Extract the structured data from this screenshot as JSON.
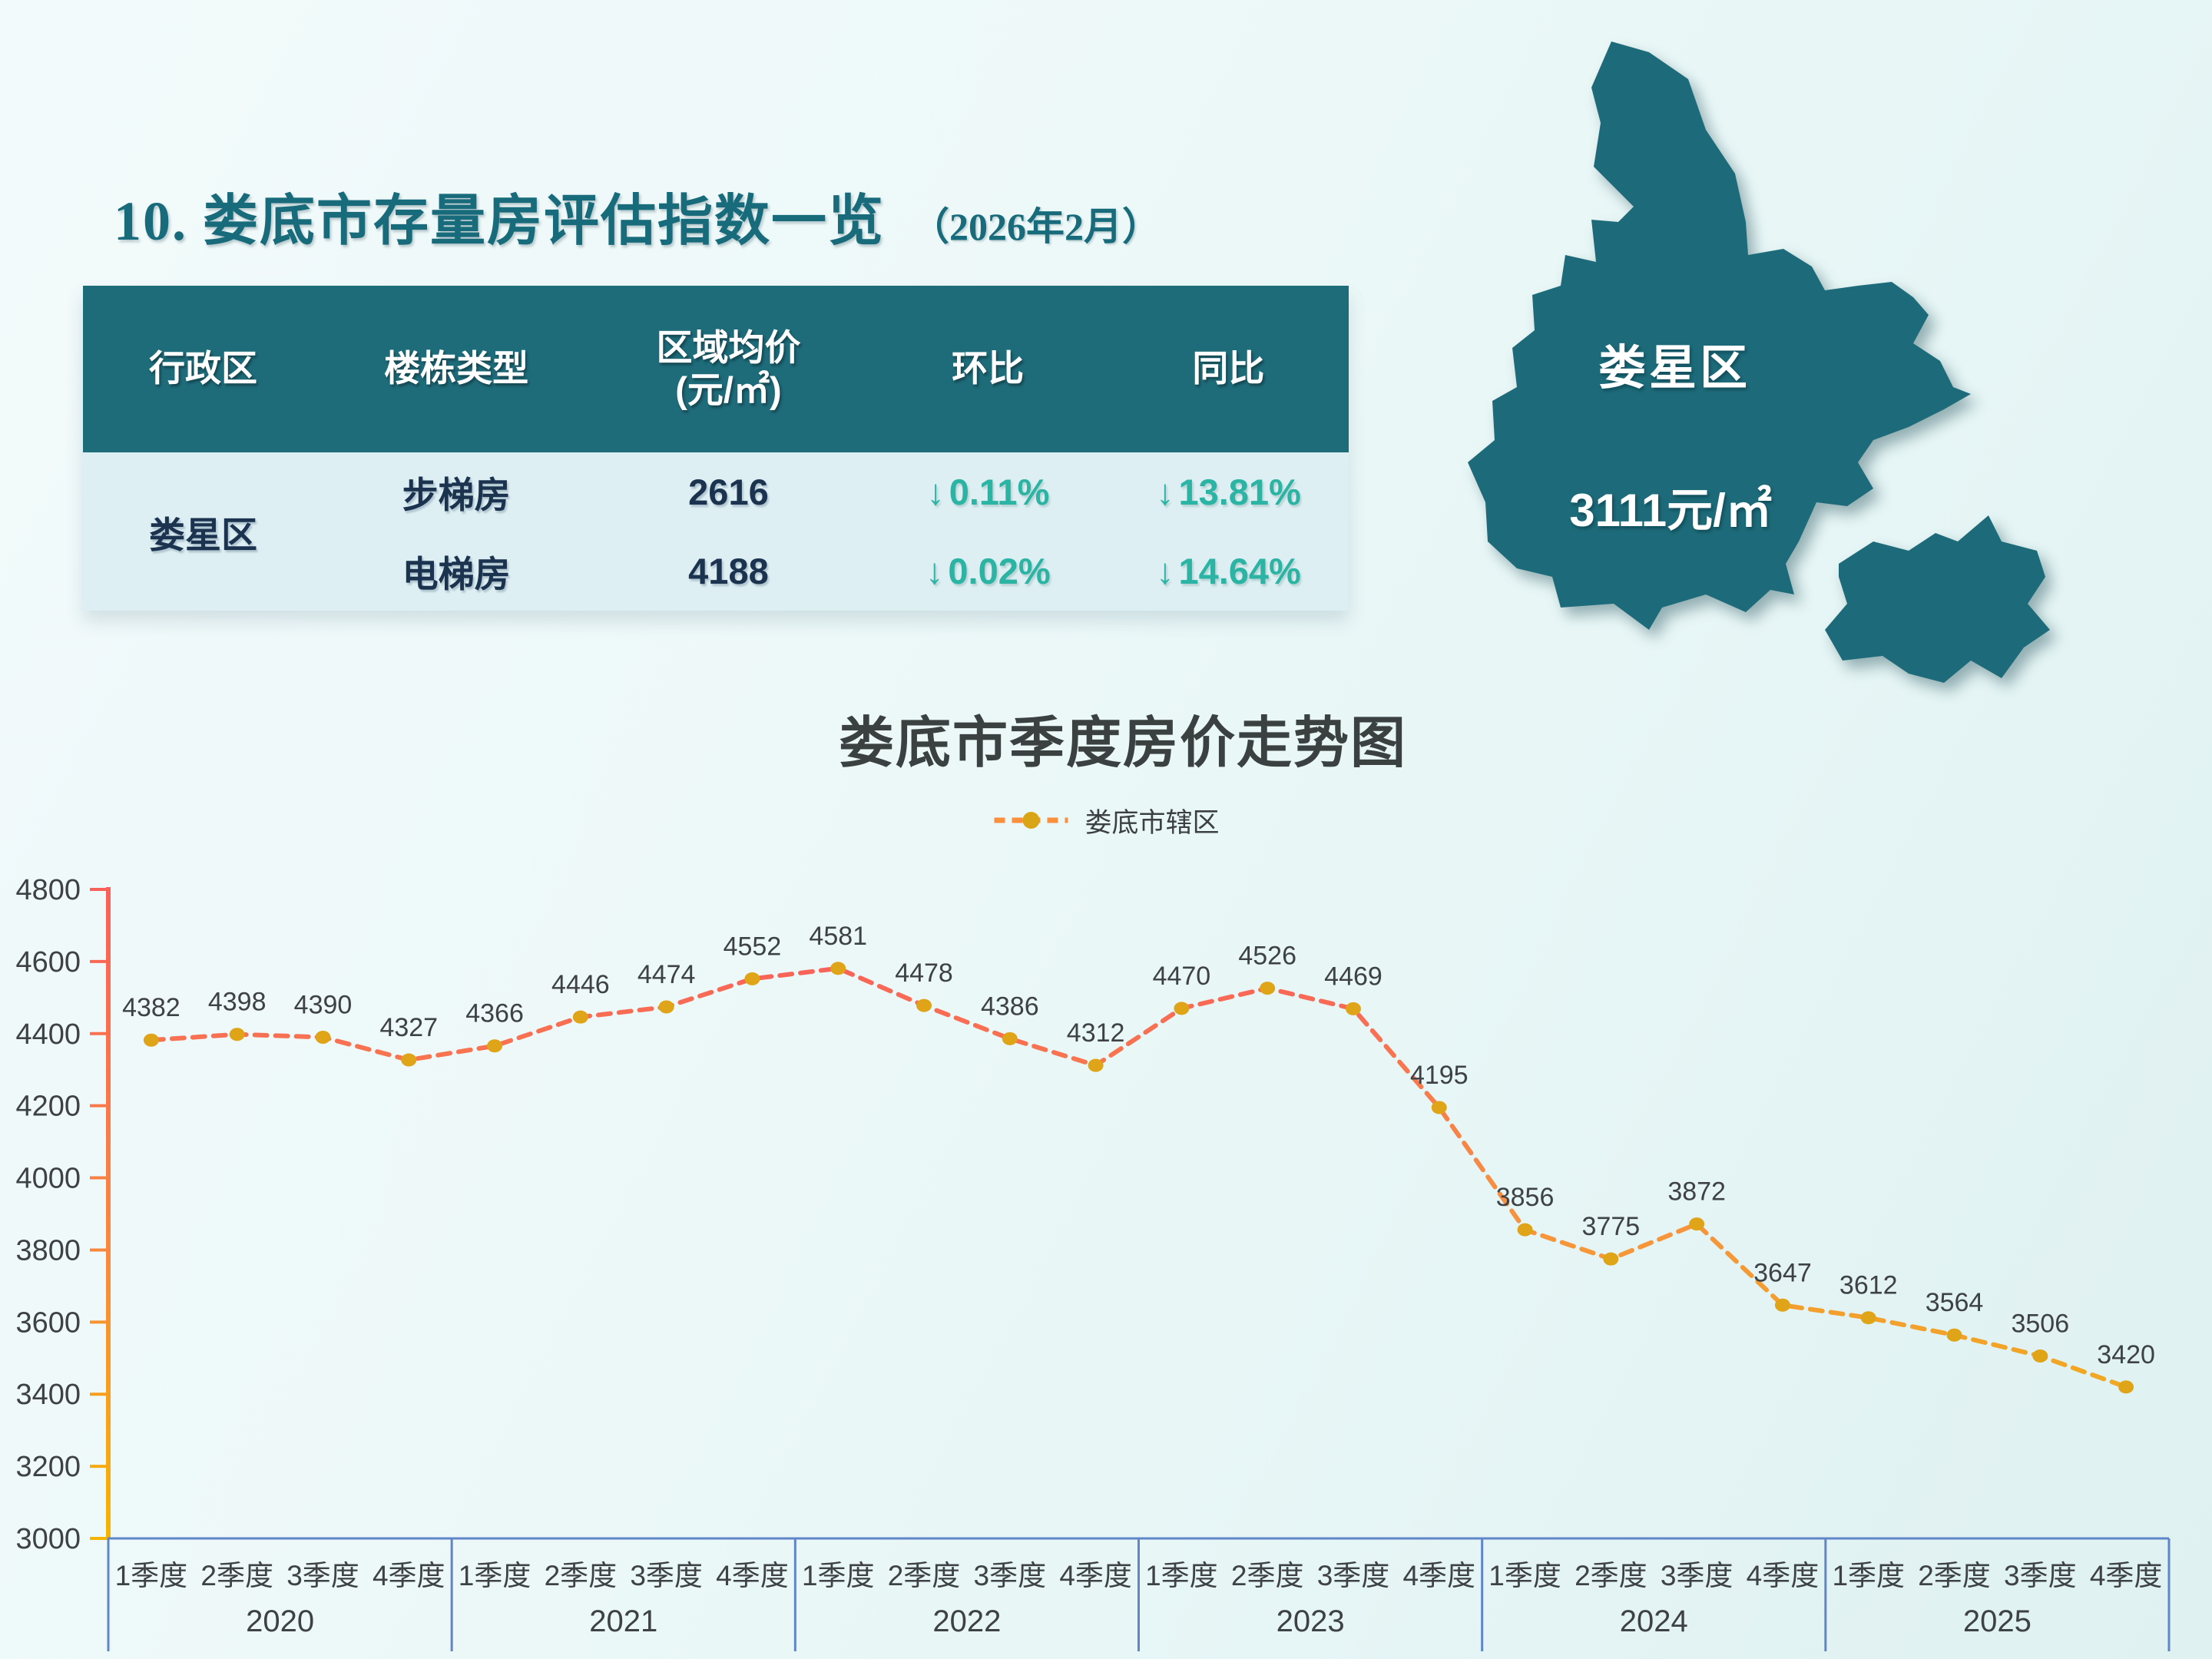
{
  "header": {
    "title": "10. 娄底市存量房评估指数一览",
    "date_note": "（2026年2月）"
  },
  "table": {
    "headers": [
      "行政区",
      "楼栋类型",
      "区域均价",
      "环比",
      "同比"
    ],
    "price_unit": "(元/㎡)",
    "district": "娄星区",
    "rows": [
      {
        "building_type": "步梯房",
        "avg_price": "2616",
        "mom_arrow": "↓",
        "mom": "0.11%",
        "yoy_arrow": "↓",
        "yoy": "13.81%"
      },
      {
        "building_type": "电梯房",
        "avg_price": "4188",
        "mom_arrow": "↓",
        "mom": "0.02%",
        "yoy_arrow": "↓",
        "yoy": "14.64%"
      }
    ]
  },
  "map": {
    "district_label": "娄星区",
    "price_label": "3111元/㎡",
    "fill_color": "#1d6b7a"
  },
  "chart": {
    "title": "娄底市季度房价走势图",
    "legend_label": "娄底市辖区"
  },
  "chart_data": {
    "type": "line",
    "title": "娄底市季度房价走势图",
    "legend": [
      "娄底市辖区"
    ],
    "legend_position": "top",
    "grid": false,
    "line_style": "dashed",
    "years": [
      "2020",
      "2021",
      "2022",
      "2023",
      "2024",
      "2025"
    ],
    "quarters": [
      "1季度",
      "2季度",
      "3季度",
      "4季度"
    ],
    "series": [
      {
        "name": "娄底市辖区",
        "values": [
          4382,
          4398,
          4390,
          4327,
          4366,
          4446,
          4474,
          4552,
          4581,
          4478,
          4386,
          4312,
          4470,
          4526,
          4469,
          4195,
          3856,
          3775,
          3872,
          3647,
          3612,
          3564,
          3506,
          3420
        ]
      }
    ],
    "ylim": [
      3000,
      4800
    ],
    "ytick_step": 200,
    "colors": {
      "axis_gradient_top": "#fa6058",
      "axis_gradient_mid": "#f9883f",
      "axis_gradient_bottom": "#f6b400",
      "line_gradient_top": "#f8625a",
      "line_gradient_mid": "#f79140",
      "line_gradient_bottom": "#f0ab1e",
      "marker": "#e0a418",
      "frame": "#5f86c8",
      "text": "#3e4244",
      "legend_dash": "#fa8f3e"
    }
  }
}
